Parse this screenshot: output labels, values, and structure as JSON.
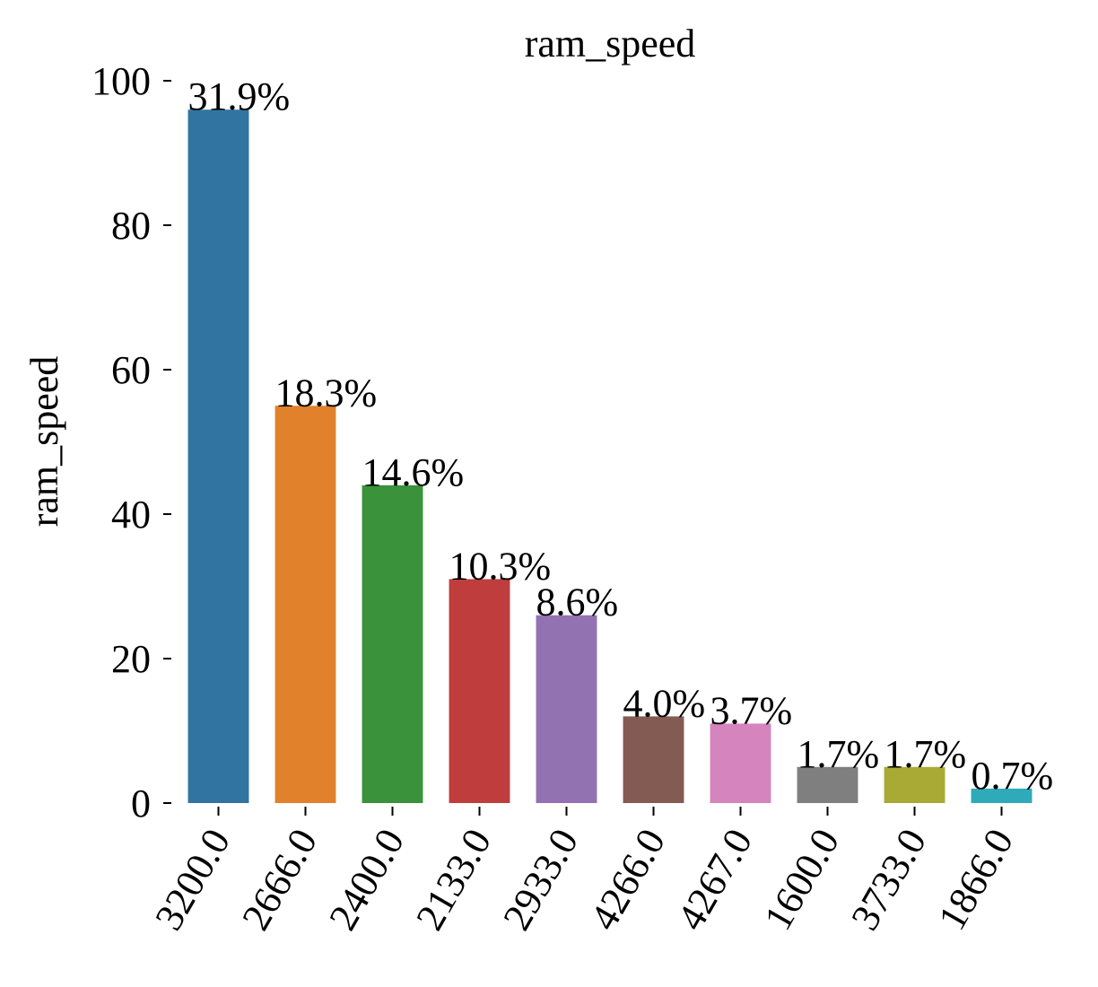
{
  "chart_data": {
    "type": "bar",
    "title": "ram_speed",
    "xlabel": "",
    "ylabel": "ram_speed",
    "categories": [
      "3200.0",
      "2666.0",
      "2400.0",
      "2133.0",
      "2933.0",
      "4266.0",
      "4267.0",
      "1600.0",
      "3733.0",
      "1866.0"
    ],
    "values": [
      96,
      55,
      44,
      31,
      26,
      12,
      11,
      5,
      5,
      2
    ],
    "data_labels": [
      "31.9%",
      "18.3%",
      "14.6%",
      "10.3%",
      "8.6%",
      "4.0%",
      "3.7%",
      "1.7%",
      "1.7%",
      "0.7%"
    ],
    "colors": [
      "#3274a1",
      "#e1812c",
      "#3a923a",
      "#c03d3e",
      "#9372b2",
      "#845b53",
      "#d684bd",
      "#7f7f7f",
      "#a9aa35",
      "#2eaab8"
    ],
    "ylim": [
      0,
      100
    ],
    "yticks": [
      "0",
      "20",
      "40",
      "60",
      "80",
      "100"
    ],
    "grid": false,
    "legend": "none"
  }
}
